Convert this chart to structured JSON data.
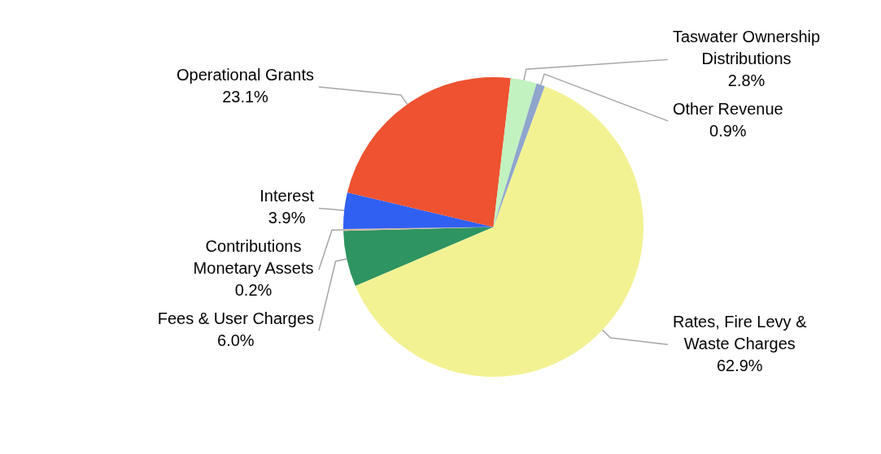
{
  "chart_data": {
    "type": "pie",
    "categories": [
      "Rates, Fire Levy & Waste Charges",
      "Fees & User Charges",
      "Contributions Monetary Assets",
      "Interest",
      "Operational Grants",
      "Taswater Ownership Distributions",
      "Other Revenue"
    ],
    "values": [
      62.9,
      6.0,
      0.2,
      3.9,
      23.1,
      2.8,
      0.9
    ],
    "value_labels": [
      "62.9%",
      "6.0%",
      "0.2%",
      "3.9%",
      "23.1%",
      "2.8%",
      "0.9%"
    ],
    "colors": [
      "#f2f293",
      "#2e9461",
      "#d9b8a0",
      "#3060f2",
      "#ee5230",
      "#c2f2c0",
      "#8fa5cc"
    ],
    "legend": false
  }
}
